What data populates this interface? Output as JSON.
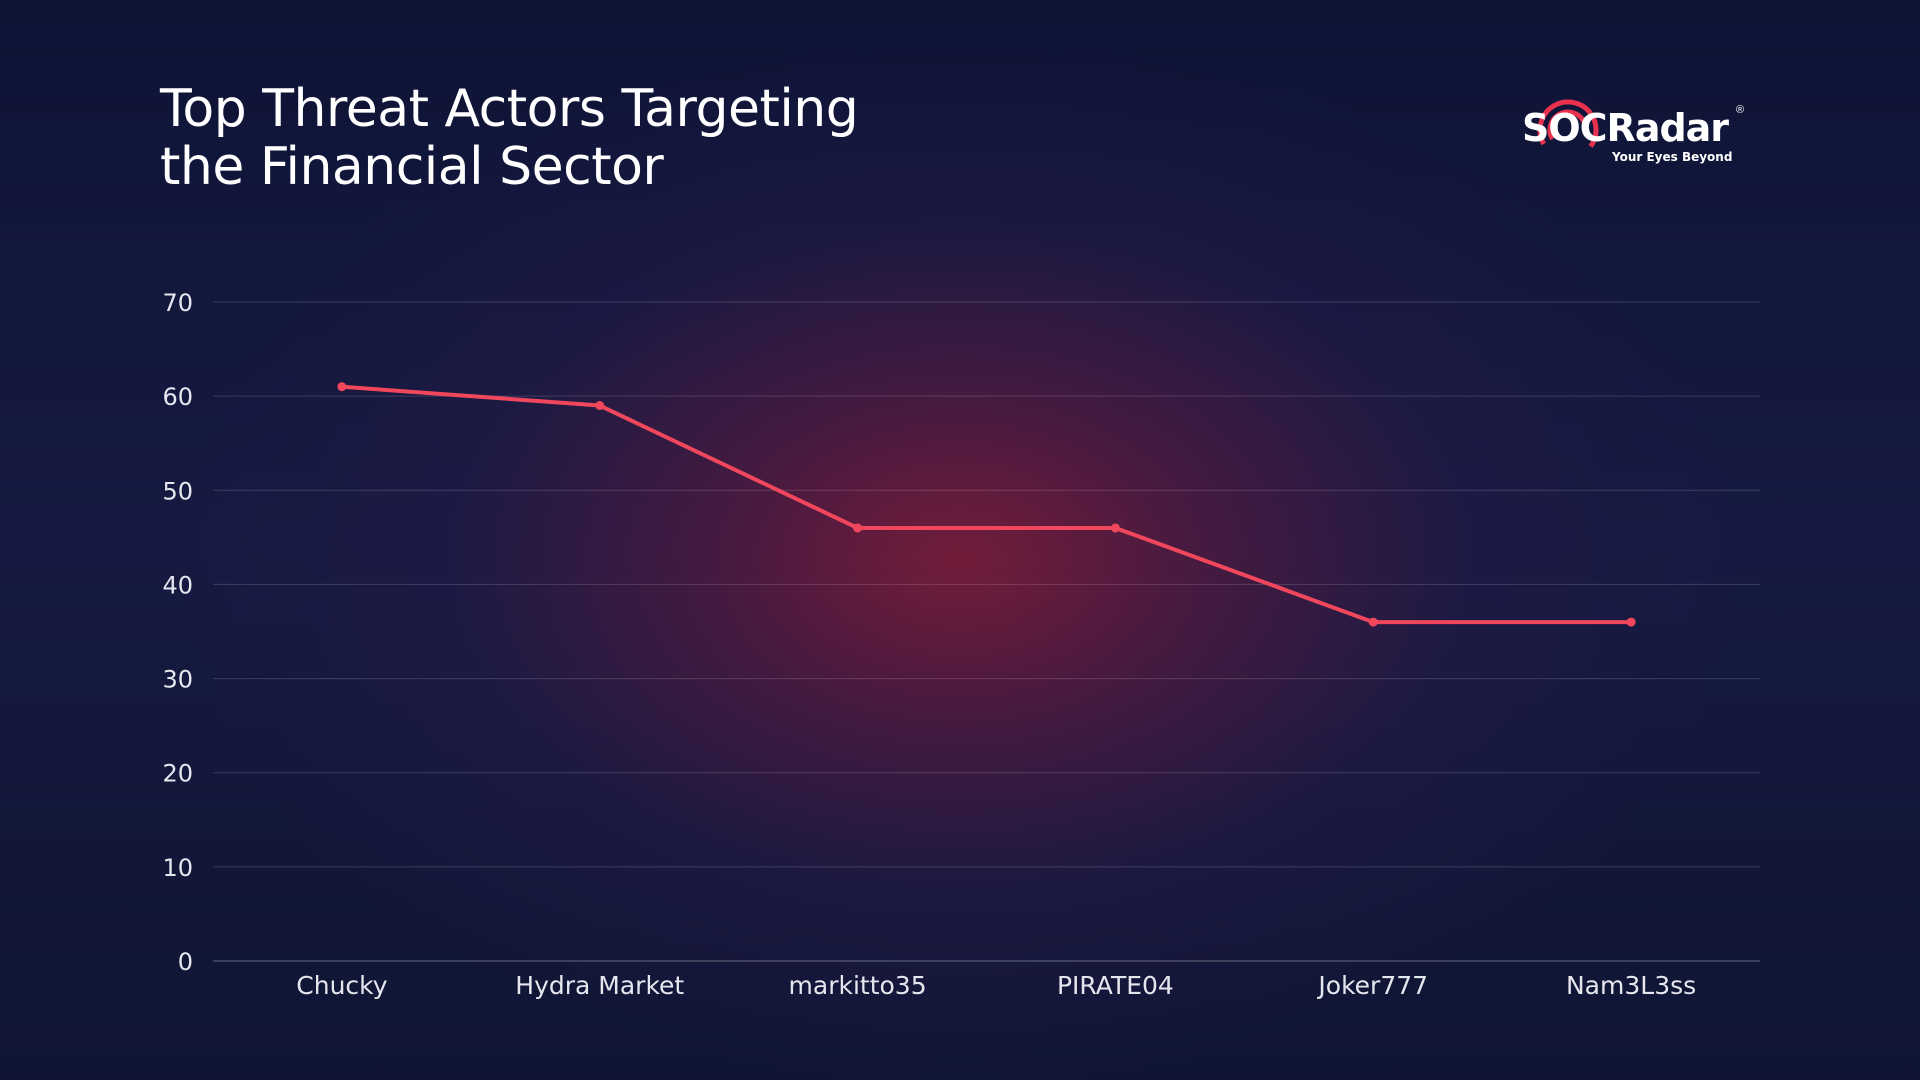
{
  "title": {
    "line1": "Top Threat Actors Targeting",
    "line2": "the Financial Sector"
  },
  "logo": {
    "name": "SOCRadar",
    "registered": "®",
    "tagline": "Your Eyes Beyond"
  },
  "colors": {
    "line": "#f0475c",
    "grid": "rgba(255,255,255,0.16)",
    "axis": "rgba(255,255,255,0.35)",
    "logo_accent": "#e8304f"
  },
  "chart_data": {
    "type": "line",
    "categories": [
      "Chucky",
      "Hydra Market",
      "markitto35",
      "PIRATE04",
      "Joker777",
      "Nam3L3ss"
    ],
    "values": [
      61,
      59,
      46,
      46,
      36,
      36
    ],
    "ylim": [
      0,
      70
    ],
    "yticks": [
      0,
      10,
      20,
      30,
      40,
      50,
      60,
      70
    ],
    "grid": true,
    "legend": "none"
  }
}
